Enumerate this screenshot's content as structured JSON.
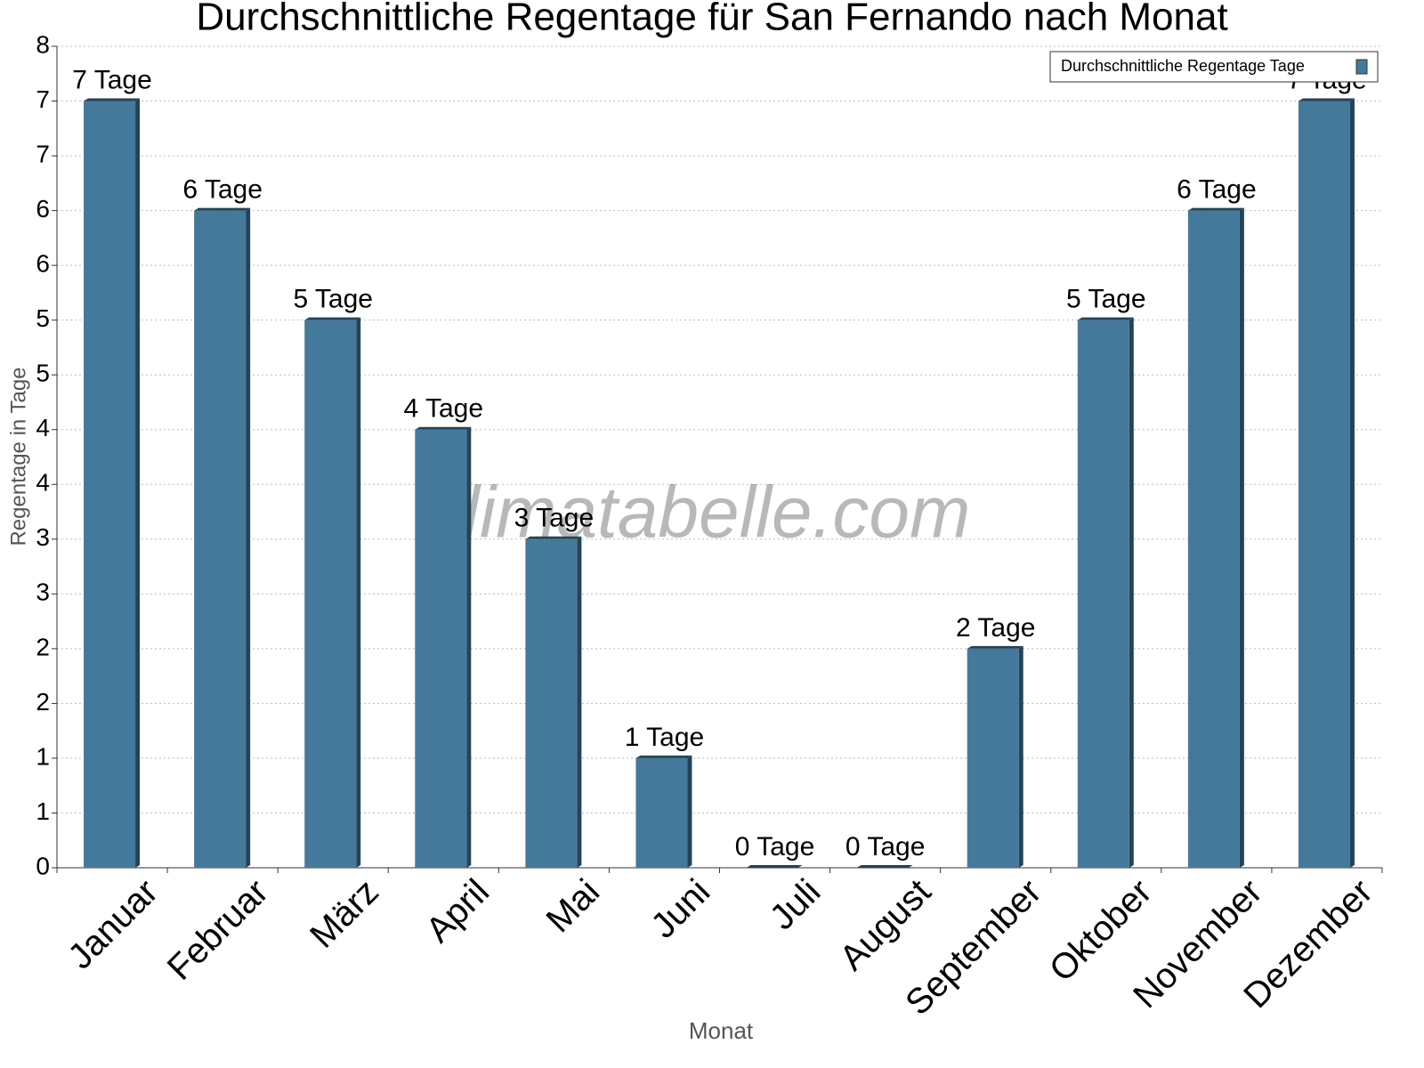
{
  "chart_data": {
    "type": "bar",
    "title": "Durchschnittliche Regentage für San Fernando nach Monat",
    "x_label": "Monat",
    "y_label": "Regentage in Tage",
    "watermark": "klimatabelle.com",
    "categories": [
      "Januar",
      "Februar",
      "März",
      "April",
      "Mai",
      "Juni",
      "Juli",
      "August",
      "September",
      "Oktober",
      "November",
      "Dezember"
    ],
    "series": [
      {
        "name": "Durchschnittliche Regentage Tage",
        "color": "#44799c",
        "values": [
          7,
          6,
          5,
          4,
          3,
          1,
          0,
          0,
          2,
          5,
          6,
          7
        ],
        "value_labels": [
          "7 Tage",
          "6 Tage",
          "5 Tage",
          "4 Tage",
          "3 Tage",
          "1 Tage",
          "0 Tage",
          "0 Tage",
          "2 Tage",
          "5 Tage",
          "6 Tage",
          "7 Tage"
        ]
      }
    ],
    "ylim": [
      0,
      7.5
    ],
    "yticks": [
      0,
      {
        "value": 0.5,
        "label": "1"
      },
      1,
      {
        "value": 1.5,
        "label": "2"
      },
      2,
      {
        "value": 2.5,
        "label": "3"
      },
      3,
      {
        "value": 3.5,
        "label": "4"
      },
      4,
      {
        "value": 4.5,
        "label": "5"
      },
      5,
      {
        "value": 5.5,
        "label": "6"
      },
      6,
      {
        "value": 6.5,
        "label": "7"
      },
      7,
      {
        "value": 7.5,
        "label": "8"
      }
    ],
    "grid": true,
    "legend": "upper right"
  }
}
